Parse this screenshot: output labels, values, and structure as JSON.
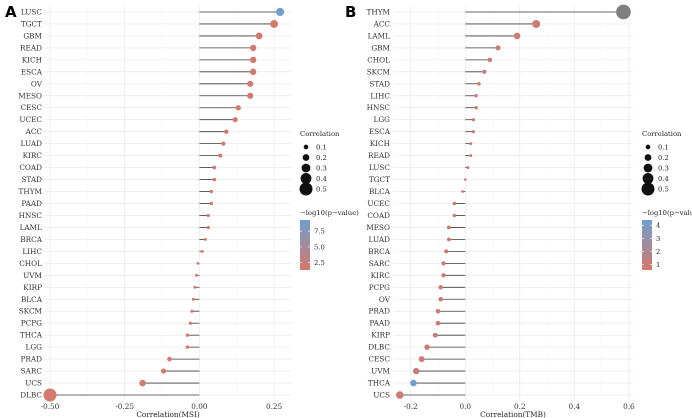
{
  "chart_data": [
    {
      "type": "scatter",
      "panel_label": "A",
      "xlabel": "Correlation(MSI)",
      "x_ticks": [
        "-0.50",
        "-0.25",
        "0.00",
        "0.25"
      ],
      "x_tick_values": [
        -0.5,
        -0.25,
        0.0,
        0.25
      ],
      "xlim": [
        -0.52,
        0.31
      ],
      "categories": [
        "LUSC",
        "TGCT",
        "GBM",
        "READ",
        "KICH",
        "ESCA",
        "OV",
        "MESO",
        "CESC",
        "UCEC",
        "ACC",
        "LUAD",
        "KIRC",
        "COAD",
        "STAD",
        "THYM",
        "PAAD",
        "HNSC",
        "LAML",
        "BRCA",
        "LIHC",
        "CHOL",
        "UVM",
        "KIRP",
        "BLCA",
        "SKCM",
        "PCPG",
        "THCA",
        "LGG",
        "PRAD",
        "SARC",
        "UCS",
        "DLBC"
      ],
      "values": [
        0.27,
        0.25,
        0.2,
        0.18,
        0.18,
        0.18,
        0.17,
        0.17,
        0.13,
        0.12,
        0.09,
        0.08,
        0.07,
        0.05,
        0.05,
        0.04,
        0.04,
        0.03,
        0.03,
        0.02,
        0.01,
        -0.005,
        -0.01,
        -0.015,
        -0.02,
        -0.025,
        -0.03,
        -0.04,
        -0.04,
        -0.1,
        -0.12,
        -0.19,
        -0.5
      ],
      "neglog10p": [
        9.0,
        1.6,
        1.6,
        1.6,
        1.6,
        1.6,
        1.6,
        1.6,
        1.6,
        1.6,
        1.6,
        1.6,
        1.6,
        1.6,
        1.6,
        1.6,
        1.6,
        1.6,
        1.6,
        1.6,
        1.6,
        1.6,
        1.6,
        1.6,
        1.6,
        1.6,
        1.6,
        1.6,
        1.6,
        1.6,
        1.6,
        1.6,
        1.6
      ],
      "legend_size": {
        "title": "Correlation",
        "labels": [
          "0.1",
          "0.2",
          "0.3",
          "0.4",
          "0.5"
        ],
        "values": [
          0.1,
          0.2,
          0.3,
          0.4,
          0.5
        ]
      },
      "legend_color": {
        "title": "−log10(p−value)",
        "labels": [
          "7.5",
          "5.0",
          "2.5"
        ],
        "values": [
          7.5,
          5.0,
          2.5
        ],
        "range": [
          1.3,
          9.3
        ],
        "low_color": "#d7776b",
        "high_color": "#6e9fcf"
      },
      "grid": true,
      "legend_position": "right"
    },
    {
      "type": "scatter",
      "panel_label": "B",
      "xlabel": "Correlation(TMB)",
      "x_ticks": [
        "-0.2",
        "0.0",
        "0.2",
        "0.4",
        "0.6"
      ],
      "x_tick_values": [
        -0.2,
        0.0,
        0.2,
        0.4,
        0.6
      ],
      "xlim": [
        -0.265,
        0.615
      ],
      "categories": [
        "THYM",
        "ACC",
        "LAML",
        "GBM",
        "CHOL",
        "SKCM",
        "STAD",
        "LIHC",
        "HNSC",
        "LGG",
        "ESCA",
        "KICH",
        "READ",
        "LUSC",
        "TGCT",
        "BLCA",
        "UCEC",
        "COAD",
        "MESO",
        "LUAD",
        "BRCA",
        "SARC",
        "KIRC",
        "PCPG",
        "OV",
        "PRAD",
        "PAAD",
        "KIRP",
        "DLBC",
        "CESC",
        "UVM",
        "THCA",
        "UCS"
      ],
      "values": [
        0.58,
        0.26,
        0.19,
        0.12,
        0.09,
        0.07,
        0.05,
        0.04,
        0.04,
        0.03,
        0.03,
        0.02,
        0.02,
        0.01,
        0.0,
        -0.01,
        -0.04,
        -0.04,
        -0.06,
        -0.06,
        -0.07,
        -0.08,
        -0.08,
        -0.09,
        -0.09,
        -0.1,
        -0.1,
        -0.11,
        -0.14,
        -0.16,
        -0.18,
        -0.19,
        -0.24
      ],
      "neglog10p": [
        null,
        1.0,
        1.0,
        1.0,
        1.0,
        1.0,
        1.0,
        1.0,
        1.0,
        1.0,
        1.0,
        1.0,
        1.0,
        1.0,
        1.0,
        1.0,
        1.0,
        1.0,
        1.0,
        1.0,
        1.0,
        1.0,
        1.0,
        1.0,
        1.0,
        1.0,
        1.0,
        1.0,
        1.0,
        1.0,
        1.0,
        4.5,
        1.0
      ],
      "na_color": "#7f7f7f",
      "legend_size": {
        "title": "Correlation",
        "labels": [
          "0.1",
          "0.2",
          "0.3",
          "0.4",
          "0.5"
        ],
        "values": [
          0.1,
          0.2,
          0.3,
          0.4,
          0.5
        ]
      },
      "legend_color": {
        "title": "−log10(p−value)",
        "labels": [
          "4",
          "3",
          "2",
          "1"
        ],
        "values": [
          4,
          3,
          2,
          1
        ],
        "range": [
          0.6,
          4.4
        ],
        "low_color": "#d7776b",
        "high_color": "#6e9fcf"
      },
      "grid": true,
      "legend_position": "right"
    }
  ]
}
